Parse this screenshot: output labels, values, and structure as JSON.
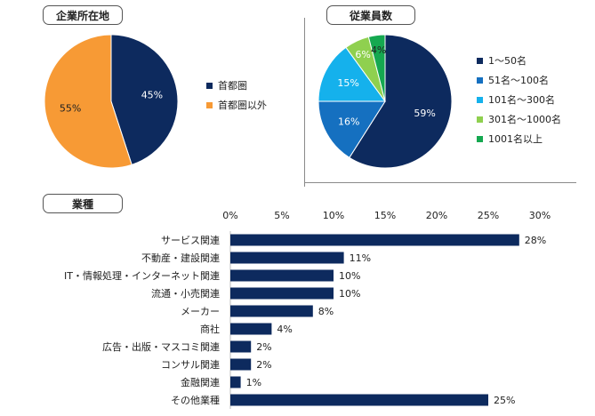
{
  "sections": {
    "location": "企業所在地",
    "employees": "従業員数",
    "industry": "業種"
  },
  "chart_data": [
    {
      "type": "pie",
      "title": "企業所在地",
      "labels": [
        "首都圏",
        "首都圏以外"
      ],
      "values": [
        45,
        55
      ],
      "value_labels": [
        "45%",
        "55%"
      ],
      "colors": [
        "#0d2a5e",
        "#f79a35"
      ],
      "legend": "right"
    },
    {
      "type": "pie",
      "title": "従業員数",
      "labels": [
        "1～50名",
        "51名～100名",
        "101名～300名",
        "301名～1000名",
        "1001名以上"
      ],
      "values": [
        59,
        16,
        15,
        6,
        4
      ],
      "value_labels": [
        "59%",
        "16%",
        "15%",
        "6%",
        "4%"
      ],
      "colors": [
        "#0d2a5e",
        "#1570c0",
        "#15b1ec",
        "#8fd04f",
        "#15a850"
      ],
      "legend": "right"
    },
    {
      "type": "bar",
      "orientation": "horizontal",
      "title": "業種",
      "categories": [
        "サービス関連",
        "不動産・建設関連",
        "IT・情報処理・インターネット関連",
        "流通・小売関連",
        "メーカー",
        "商社",
        "広告・出版・マスコミ関連",
        "コンサル関連",
        "金融関連",
        "その他業種"
      ],
      "values": [
        28,
        11,
        10,
        10,
        8,
        4,
        2,
        2,
        1,
        25
      ],
      "value_labels": [
        "28%",
        "11%",
        "10%",
        "10%",
        "8%",
        "4%",
        "2%",
        "2%",
        "1%",
        "25%"
      ],
      "ticks": [
        "0%",
        "5%",
        "10%",
        "15%",
        "20%",
        "25%",
        "30%"
      ],
      "xlim": [
        0,
        30
      ],
      "color": "#0d2a5e"
    }
  ]
}
